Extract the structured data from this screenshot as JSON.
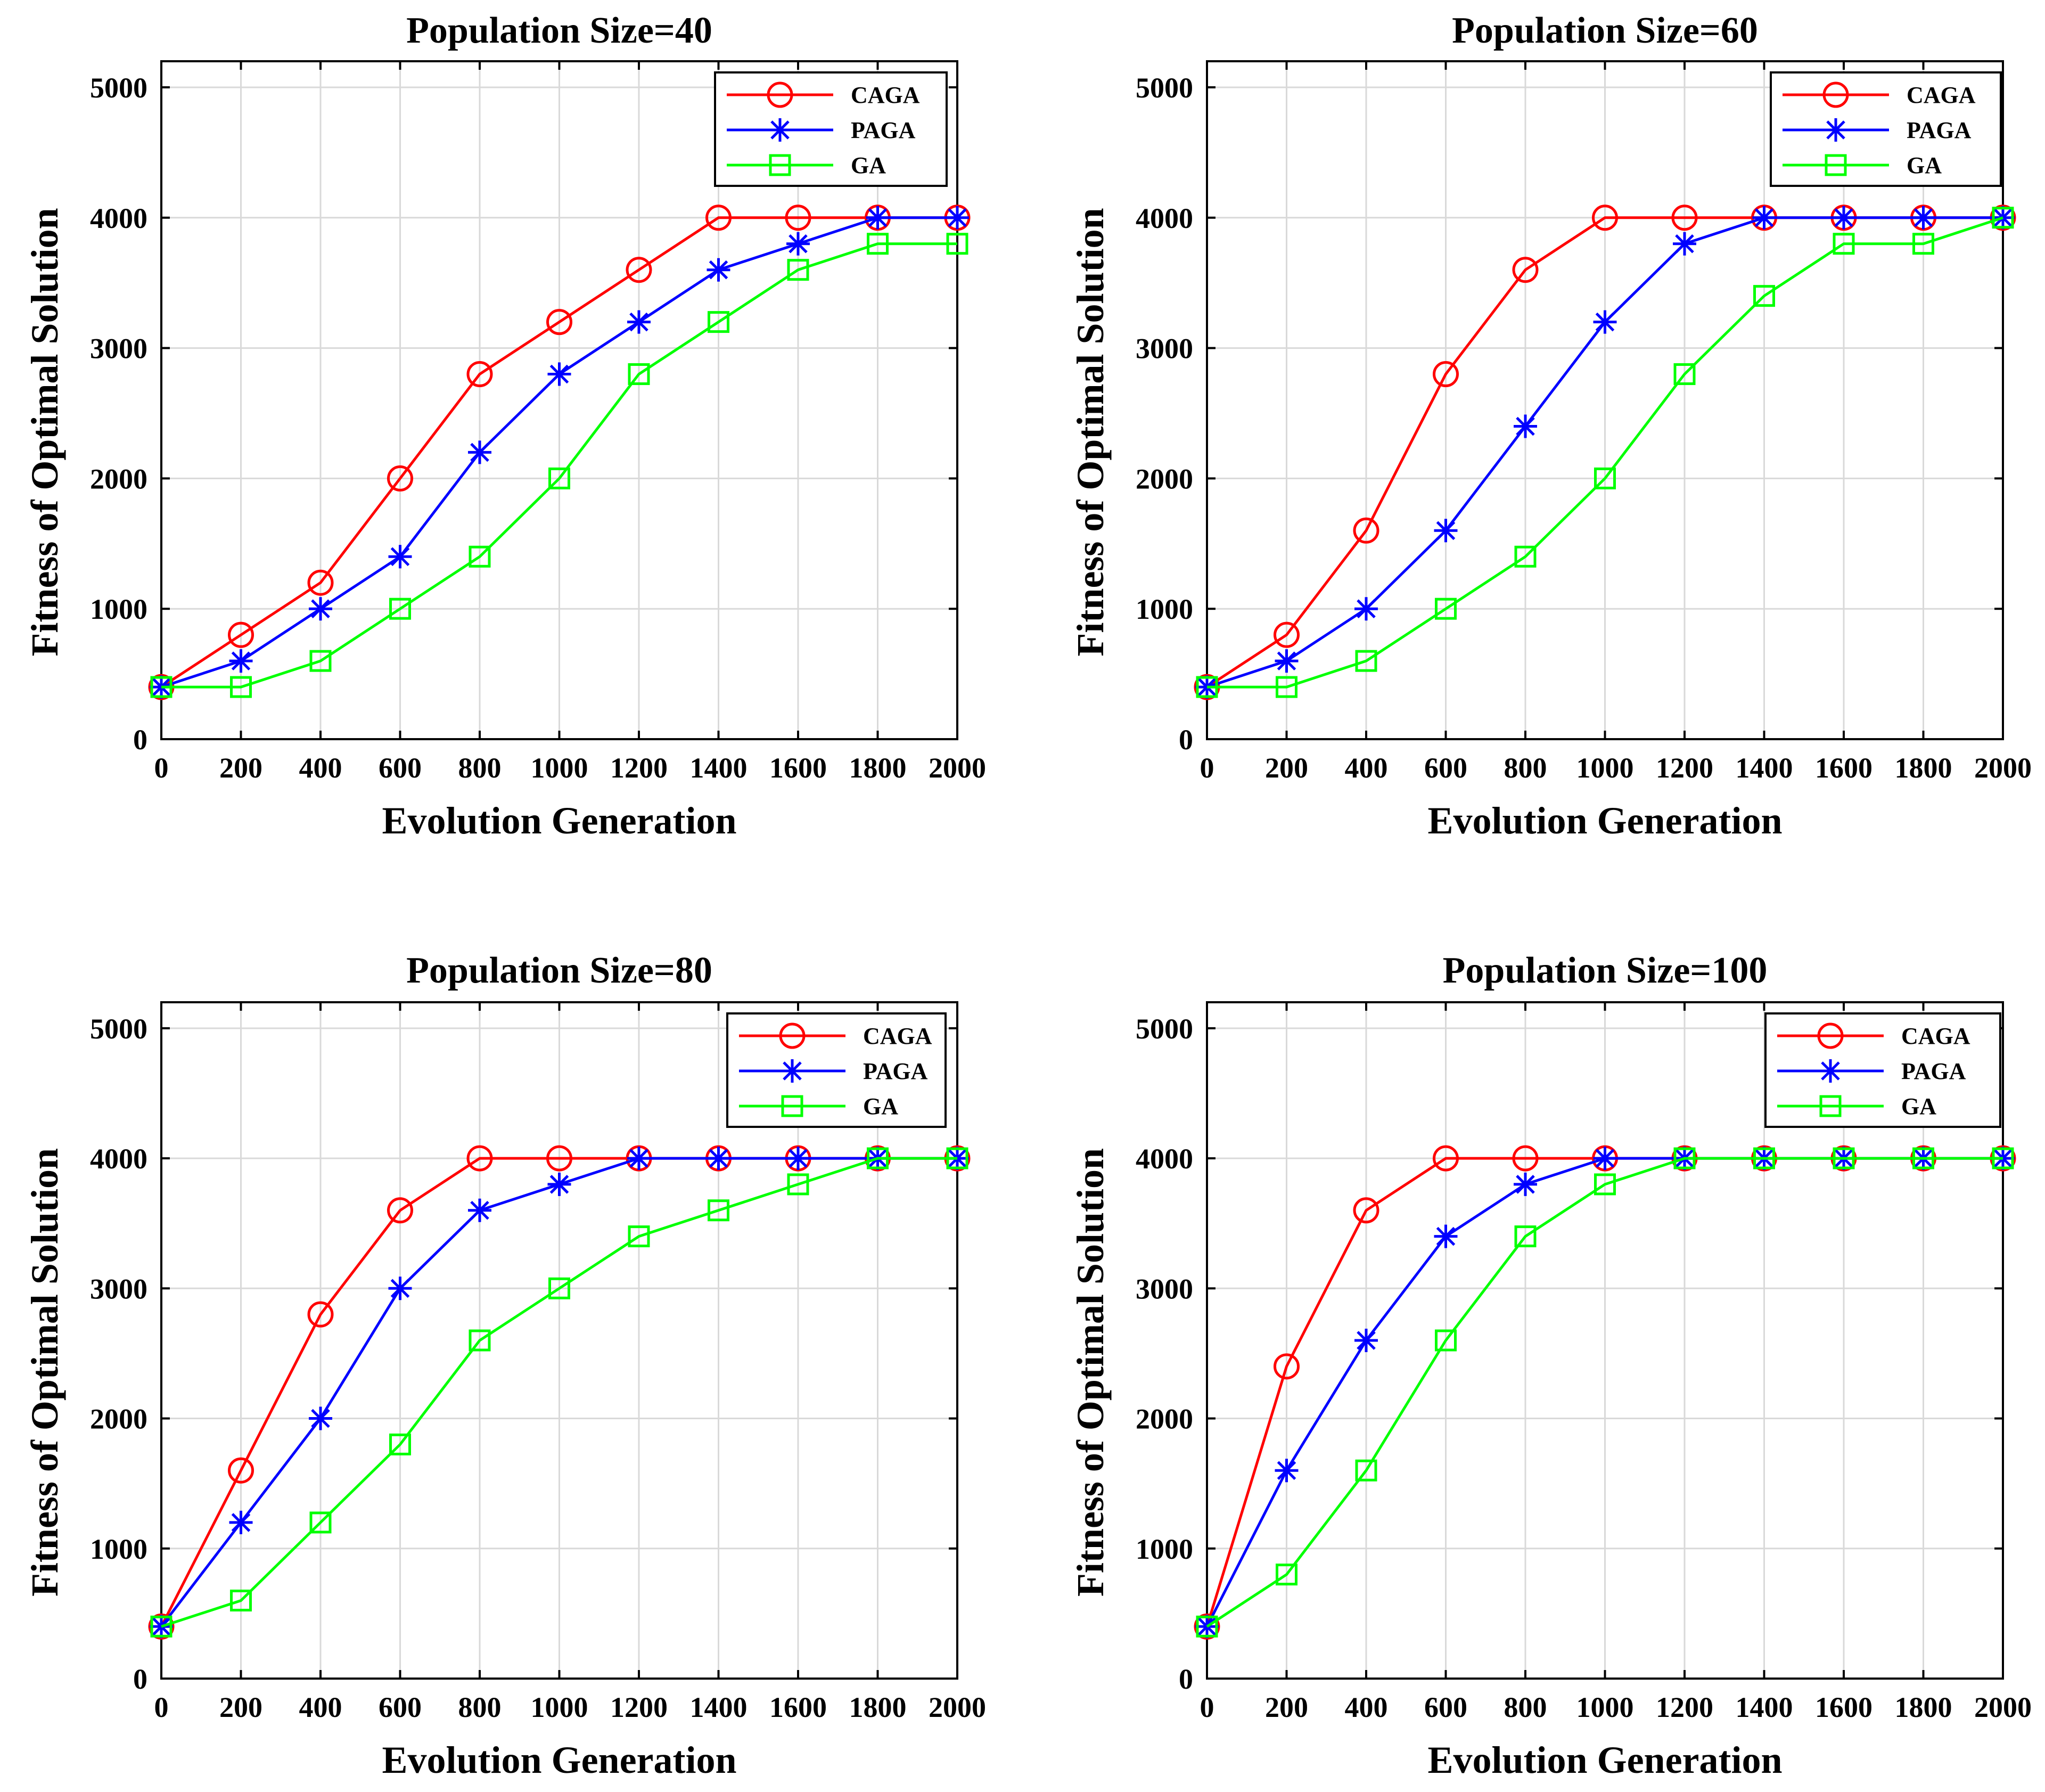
{
  "colors": {
    "CAGA": "#ff0000",
    "PAGA": "#0000ff",
    "GA": "#00ff00",
    "grid": "#d9d9d9",
    "axis": "#000000"
  },
  "chart_data": [
    {
      "type": "line",
      "title": "Population Size=40",
      "xlabel": "Evolution Generation",
      "ylabel": "Fitness of Optimal Solution",
      "x": [
        0,
        200,
        400,
        600,
        800,
        1000,
        1200,
        1400,
        1600,
        1800,
        2000
      ],
      "xlim": [
        0,
        2000
      ],
      "ylim": [
        0,
        5200
      ],
      "xticks": [
        "0",
        "200",
        "400",
        "600",
        "800",
        "1000",
        "1200",
        "1400",
        "1600",
        "1800",
        "2000"
      ],
      "yticks": [
        "0",
        "1000",
        "2000",
        "3000",
        "4000",
        "5000"
      ],
      "grid": true,
      "legend_position": "top-right",
      "series": [
        {
          "name": "CAGA",
          "marker": "circle",
          "values": [
            400,
            800,
            1200,
            2000,
            2800,
            3200,
            3600,
            4000,
            4000,
            4000,
            4000
          ]
        },
        {
          "name": "PAGA",
          "marker": "asterisk",
          "values": [
            400,
            600,
            1000,
            1400,
            2200,
            2800,
            3200,
            3600,
            3800,
            4000,
            4000
          ]
        },
        {
          "name": "GA",
          "marker": "square",
          "values": [
            400,
            400,
            600,
            1000,
            1400,
            2000,
            2800,
            3200,
            3600,
            3800,
            3800
          ]
        }
      ]
    },
    {
      "type": "line",
      "title": "Population Size=60",
      "xlabel": "Evolution Generation",
      "ylabel": "Fitness of Optimal Solution",
      "x": [
        0,
        200,
        400,
        600,
        800,
        1000,
        1200,
        1400,
        1600,
        1800,
        2000
      ],
      "xlim": [
        0,
        2000
      ],
      "ylim": [
        0,
        5200
      ],
      "xticks": [
        "0",
        "200",
        "400",
        "600",
        "800",
        "1000",
        "1200",
        "1400",
        "1600",
        "1800",
        "2000"
      ],
      "yticks": [
        "0",
        "1000",
        "2000",
        "3000",
        "4000",
        "5000"
      ],
      "grid": true,
      "legend_position": "top-right",
      "series": [
        {
          "name": "CAGA",
          "marker": "circle",
          "values": [
            400,
            800,
            1600,
            2800,
            3600,
            4000,
            4000,
            4000,
            4000,
            4000,
            4000
          ]
        },
        {
          "name": "PAGA",
          "marker": "asterisk",
          "values": [
            400,
            600,
            1000,
            1600,
            2400,
            3200,
            3800,
            4000,
            4000,
            4000,
            4000
          ]
        },
        {
          "name": "GA",
          "marker": "square",
          "values": [
            400,
            400,
            600,
            1000,
            1400,
            2000,
            2800,
            3400,
            3800,
            3800,
            4000
          ]
        }
      ]
    },
    {
      "type": "line",
      "title": "Population Size=80",
      "xlabel": "Evolution Generation",
      "ylabel": "Fitness of Optimal Solution",
      "x": [
        0,
        200,
        400,
        600,
        800,
        1000,
        1200,
        1400,
        1600,
        1800,
        2000
      ],
      "xlim": [
        0,
        2000
      ],
      "ylim": [
        0,
        5200
      ],
      "xticks": [
        "0",
        "200",
        "400",
        "600",
        "800",
        "1000",
        "1200",
        "1400",
        "1600",
        "1800",
        "2000"
      ],
      "yticks": [
        "0",
        "1000",
        "2000",
        "3000",
        "4000",
        "5000"
      ],
      "grid": true,
      "legend_position": "top-right",
      "series": [
        {
          "name": "CAGA",
          "marker": "circle",
          "values": [
            400,
            1600,
            2800,
            3600,
            4000,
            4000,
            4000,
            4000,
            4000,
            4000,
            4000
          ]
        },
        {
          "name": "PAGA",
          "marker": "asterisk",
          "values": [
            400,
            1200,
            2000,
            3000,
            3600,
            3800,
            4000,
            4000,
            4000,
            4000,
            4000
          ]
        },
        {
          "name": "GA",
          "marker": "square",
          "values": [
            400,
            600,
            1200,
            1800,
            2600,
            3000,
            3400,
            3600,
            3800,
            4000,
            4000
          ]
        }
      ]
    },
    {
      "type": "line",
      "title": "Population Size=100",
      "xlabel": "Evolution Generation",
      "ylabel": "Fitness of Optimal Solution",
      "x": [
        0,
        200,
        400,
        600,
        800,
        1000,
        1200,
        1400,
        1600,
        1800,
        2000
      ],
      "xlim": [
        0,
        2000
      ],
      "ylim": [
        0,
        5200
      ],
      "xticks": [
        "0",
        "200",
        "400",
        "600",
        "800",
        "1000",
        "1200",
        "1400",
        "1600",
        "1800",
        "2000"
      ],
      "yticks": [
        "0",
        "1000",
        "2000",
        "3000",
        "4000",
        "5000"
      ],
      "grid": true,
      "legend_position": "top-right",
      "series": [
        {
          "name": "CAGA",
          "marker": "circle",
          "values": [
            400,
            2400,
            3600,
            4000,
            4000,
            4000,
            4000,
            4000,
            4000,
            4000,
            4000
          ]
        },
        {
          "name": "PAGA",
          "marker": "asterisk",
          "values": [
            400,
            1600,
            2600,
            3400,
            3800,
            4000,
            4000,
            4000,
            4000,
            4000,
            4000
          ]
        },
        {
          "name": "GA",
          "marker": "square",
          "values": [
            400,
            800,
            1600,
            2600,
            3400,
            3800,
            4000,
            4000,
            4000,
            4000,
            4000
          ]
        }
      ]
    }
  ]
}
